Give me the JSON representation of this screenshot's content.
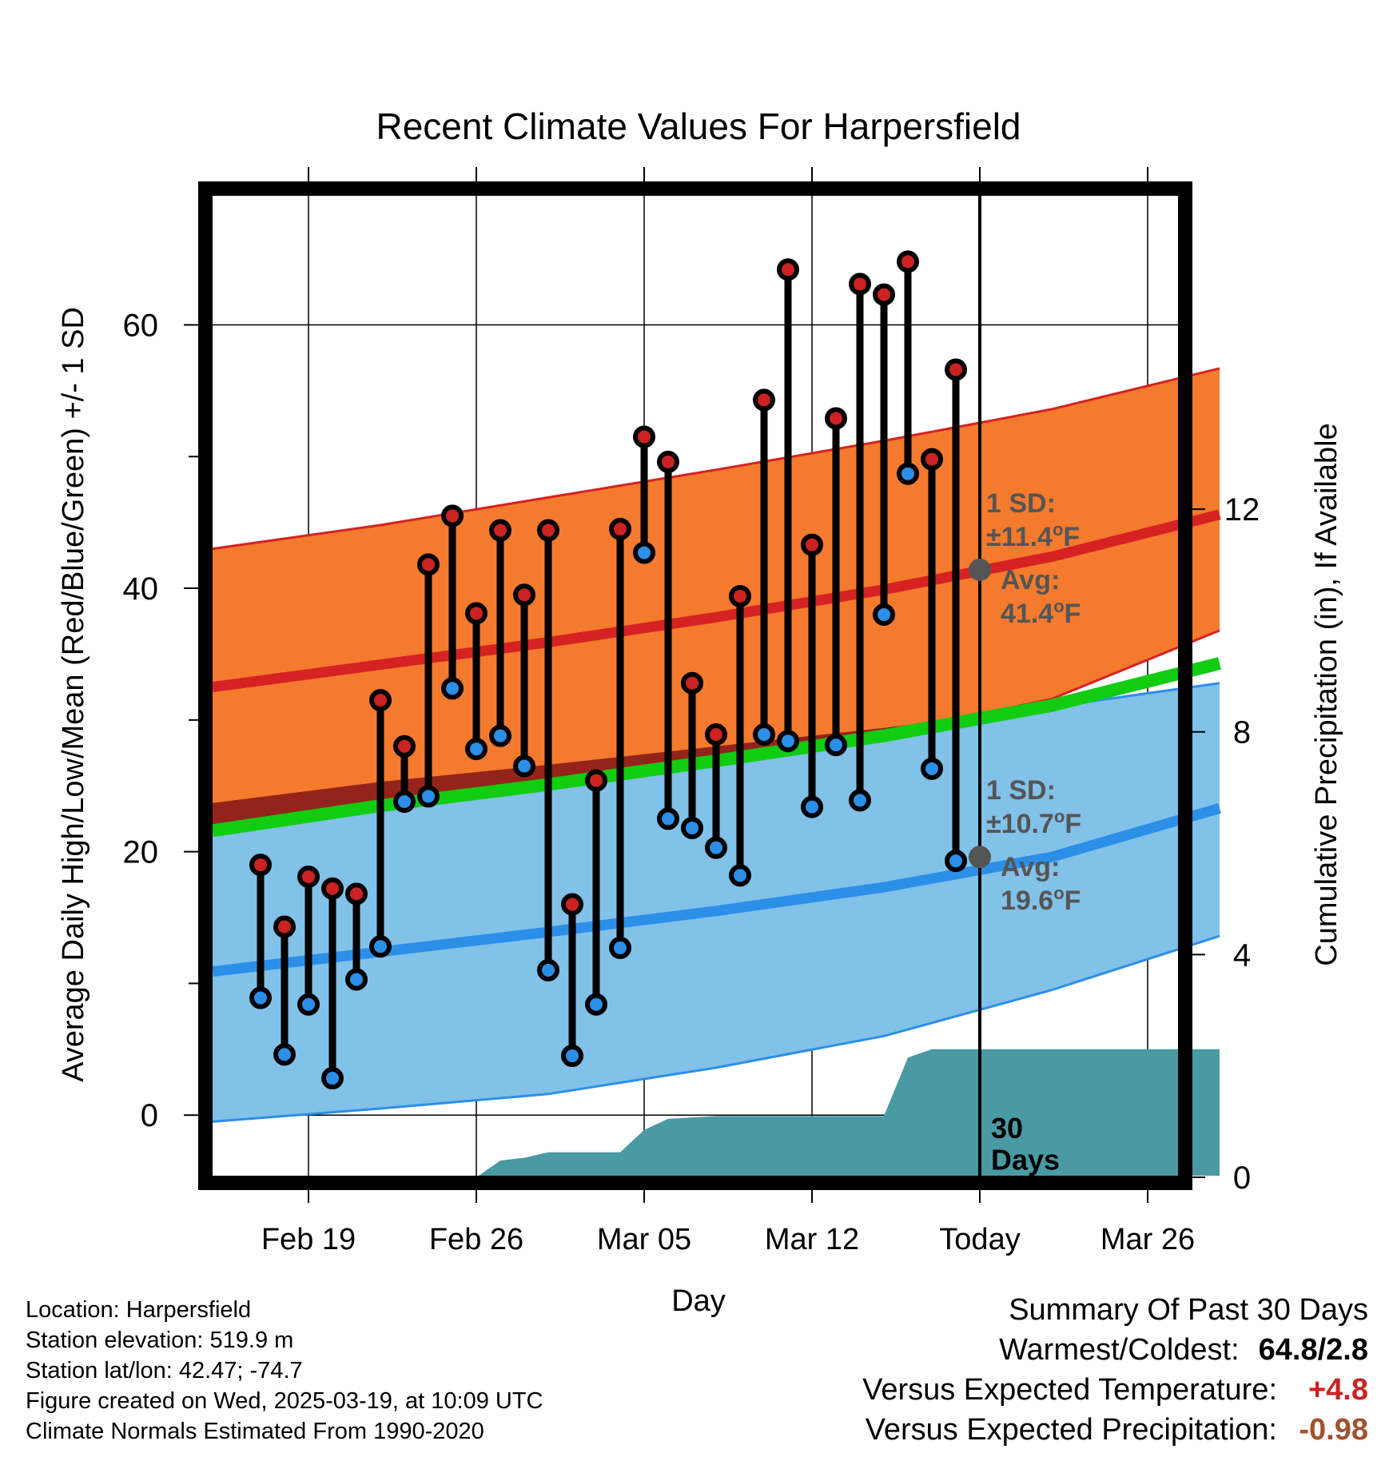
{
  "chart_data": {
    "type": "line",
    "title": "Recent Climate Values For Harpersfield",
    "xlabel": "Day",
    "ylabel": "Average Daily High/Low/Mean (Red/Blue/Green) +/- 1 SD",
    "ylabel_right": "Cumulative Precipitation (in), If Available",
    "ylim": [
      -4.6,
      69.8
    ],
    "ylim_right": [
      0,
      17.6
    ],
    "xlim": [
      "2025-02-15",
      "2025-03-30"
    ],
    "y_ticks": [
      "0",
      "20",
      "40",
      "60"
    ],
    "y_ticks_right": [
      "0",
      "4",
      "8",
      "12"
    ],
    "x_tick_labels": [
      "Feb 19",
      "Feb 26",
      "Mar 05",
      "Mar 12",
      "Today",
      "Mar 26"
    ],
    "x_tick_dates": [
      "2025-02-19",
      "2025-02-26",
      "2025-03-05",
      "2025-03-12",
      "2025-03-19",
      "2025-03-26"
    ],
    "today": "2025-03-19",
    "grid": true,
    "normals": {
      "dates": [
        "2025-02-15",
        "2025-02-22",
        "2025-03-01",
        "2025-03-08",
        "2025-03-15",
        "2025-03-22",
        "2025-03-29"
      ],
      "high_avg": [
        32.5,
        34.2,
        35.9,
        37.8,
        39.9,
        42.4,
        45.6
      ],
      "high_upper": [
        43.0,
        44.8,
        46.9,
        49.0,
        51.2,
        53.6,
        56.7
      ],
      "high_lower": [
        21.9,
        23.7,
        25.1,
        26.9,
        28.9,
        31.6,
        36.8
      ],
      "low_avg": [
        10.9,
        12.4,
        13.9,
        15.5,
        17.3,
        19.6,
        23.3
      ],
      "low_upper": [
        23.7,
        25.3,
        26.6,
        28.0,
        29.4,
        31.0,
        32.8
      ],
      "low_lower": [
        -0.5,
        0.5,
        1.6,
        3.6,
        6.0,
        9.5,
        13.6
      ],
      "mean_avg": [
        21.6,
        23.5,
        25.1,
        26.9,
        28.8,
        31.1,
        34.3
      ]
    },
    "series": [
      {
        "name": "Daily High",
        "color": "#cc2222",
        "x": [
          "2025-02-17",
          "2025-02-18",
          "2025-02-19",
          "2025-02-20",
          "2025-02-21",
          "2025-02-22",
          "2025-02-23",
          "2025-02-24",
          "2025-02-25",
          "2025-02-26",
          "2025-02-27",
          "2025-02-28",
          "2025-03-01",
          "2025-03-02",
          "2025-03-03",
          "2025-03-04",
          "2025-03-05",
          "2025-03-06",
          "2025-03-07",
          "2025-03-08",
          "2025-03-09",
          "2025-03-10",
          "2025-03-11",
          "2025-03-12",
          "2025-03-13",
          "2025-03-14",
          "2025-03-15",
          "2025-03-16",
          "2025-03-17",
          "2025-03-18"
        ],
        "values": [
          19.0,
          14.3,
          18.1,
          17.2,
          16.8,
          31.5,
          28.0,
          41.8,
          45.5,
          38.1,
          44.4,
          39.5,
          44.4,
          16.0,
          25.4,
          44.5,
          51.5,
          49.6,
          32.8,
          28.9,
          39.4,
          54.3,
          64.2,
          43.3,
          52.9,
          63.1,
          62.3,
          64.8,
          49.8,
          56.6
        ]
      },
      {
        "name": "Daily Low",
        "color": "#2b8fe8",
        "x": [
          "2025-02-17",
          "2025-02-18",
          "2025-02-19",
          "2025-02-20",
          "2025-02-21",
          "2025-02-22",
          "2025-02-23",
          "2025-02-24",
          "2025-02-25",
          "2025-02-26",
          "2025-02-27",
          "2025-02-28",
          "2025-03-01",
          "2025-03-02",
          "2025-03-03",
          "2025-03-04",
          "2025-03-05",
          "2025-03-06",
          "2025-03-07",
          "2025-03-08",
          "2025-03-09",
          "2025-03-10",
          "2025-03-11",
          "2025-03-12",
          "2025-03-13",
          "2025-03-14",
          "2025-03-15",
          "2025-03-16",
          "2025-03-17",
          "2025-03-18"
        ],
        "values": [
          8.9,
          4.6,
          8.4,
          2.8,
          10.3,
          12.8,
          23.8,
          24.2,
          32.4,
          27.8,
          28.8,
          26.5,
          11.0,
          4.5,
          8.4,
          12.7,
          42.7,
          22.5,
          21.8,
          20.3,
          18.2,
          28.9,
          28.4,
          23.4,
          28.1,
          23.9,
          38.0,
          48.7,
          26.3,
          19.3
        ]
      },
      {
        "name": "Cumulative Precipitation",
        "color": "#4a9aa4",
        "x": [
          "2025-02-15",
          "2025-02-26",
          "2025-02-27",
          "2025-02-28",
          "2025-03-01",
          "2025-03-02",
          "2025-03-03",
          "2025-03-04",
          "2025-03-05",
          "2025-03-06",
          "2025-03-08",
          "2025-03-11",
          "2025-03-15",
          "2025-03-16",
          "2025-03-17",
          "2025-03-18",
          "2025-03-19",
          "2025-03-29"
        ],
        "values": [
          0.0,
          0.0,
          0.3,
          0.35,
          0.45,
          0.45,
          0.45,
          0.45,
          0.85,
          1.05,
          1.1,
          1.1,
          1.1,
          2.15,
          2.3,
          2.3,
          2.3,
          2.3
        ]
      }
    ],
    "annotations": {
      "high_sd_label": "1 SD:",
      "high_sd_value": "±11.4",
      "high_avg_label": "Avg:",
      "high_avg_value": "41.4",
      "high_avg_point": 41.4,
      "low_sd_label": "1 SD:",
      "low_sd_value": "±10.7",
      "low_avg_label": "Avg:",
      "low_avg_value": "19.6",
      "low_avg_point": 19.6,
      "degree_symbol": "o",
      "unit": "F",
      "period_label": [
        "30",
        "Days"
      ]
    },
    "colors": {
      "high_band": "#f47a2e",
      "high_edge": "#d62222",
      "low_band": "#82c1e8",
      "low_edge": "#2b8fe8",
      "mean_line": "#11cc11",
      "precip": "#4a9aa4",
      "overlap": "#8a1a1a",
      "annotation_text": "#555555"
    }
  },
  "station_info": [
    "Location: Harpersfield",
    "Station elevation: 519.9 m",
    "Station lat/lon: 42.47; -74.7",
    "Figure created on Wed, 2025-03-19, at 10:09 UTC",
    "Climate Normals Estimated From 1990-2020"
  ],
  "summary": {
    "title": "Summary Of Past 30 Days",
    "warmest_coldest_label": "Warmest/Coldest:",
    "warmest_coldest_value": "64.8/2.8",
    "temp_label": "Versus Expected Temperature:",
    "temp_value": "+4.8",
    "temp_color": "#cc2222",
    "precip_label": "Versus Expected Precipitation:",
    "precip_value": "-0.98",
    "precip_color": "#a0522d"
  }
}
